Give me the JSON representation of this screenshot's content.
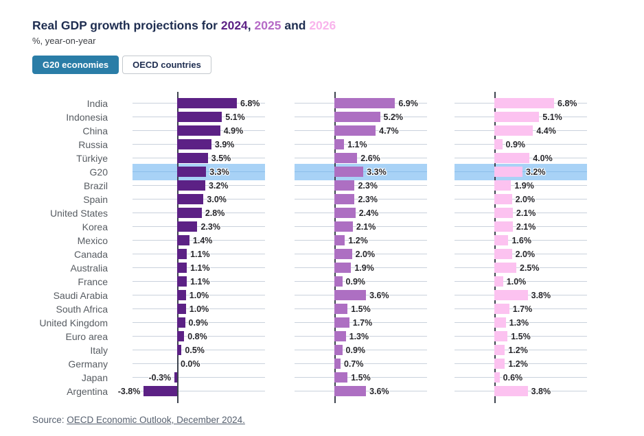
{
  "header": {
    "title_prefix": "Real GDP growth projections for ",
    "year1": "2024",
    "sep1": ", ",
    "year2": "2025",
    "sep2": " and ",
    "year3": "2026",
    "subtitle": "%, year-on-year"
  },
  "tabs": {
    "g20_label": "G20 economies",
    "oecd_label": "OECD countries"
  },
  "source": {
    "prefix": "Source: ",
    "link": "OECD Economic Outlook, December 2024."
  },
  "colors": {
    "title_navy": "#1e2d50",
    "accent_blue": "#2a7da7",
    "highlight_band": "#a8d2f6",
    "year2024": "#5c2185",
    "year2025": "#ad6fc2",
    "year2026": "#fcc2f0"
  },
  "chart_data": {
    "type": "bar",
    "orientation": "horizontal",
    "title": "Real GDP growth projections for 2024, 2025 and 2026",
    "subtitle": "%, year-on-year",
    "value_unit": "%",
    "grid": true,
    "highlight_category": "G20",
    "categories": [
      "India",
      "Indonesia",
      "China",
      "Russia",
      "Türkiye",
      "G20",
      "Brazil",
      "Spain",
      "United States",
      "Korea",
      "Mexico",
      "Canada",
      "Australia",
      "France",
      "Saudi Arabia",
      "South Africa",
      "United Kingdom",
      "Euro area",
      "Italy",
      "Germany",
      "Japan",
      "Argentina"
    ],
    "series": [
      {
        "name": "2024",
        "color": "#5c2185",
        "values": [
          6.8,
          5.1,
          4.9,
          3.9,
          3.5,
          3.3,
          3.2,
          3.0,
          2.8,
          2.3,
          1.4,
          1.1,
          1.1,
          1.1,
          1.0,
          1.0,
          0.9,
          0.8,
          0.5,
          0.0,
          -0.3,
          -3.8
        ]
      },
      {
        "name": "2025",
        "color": "#ad6fc2",
        "values": [
          6.9,
          5.2,
          4.7,
          1.1,
          2.6,
          3.3,
          2.3,
          2.3,
          2.4,
          2.1,
          1.2,
          2.0,
          1.9,
          0.9,
          3.6,
          1.5,
          1.7,
          1.3,
          0.9,
          0.7,
          1.5,
          3.6
        ]
      },
      {
        "name": "2026",
        "color": "#fcc2f0",
        "values": [
          6.8,
          5.1,
          4.4,
          0.9,
          4.0,
          3.2,
          1.9,
          2.0,
          2.1,
          2.1,
          1.6,
          2.0,
          2.5,
          1.0,
          3.8,
          1.7,
          1.3,
          1.5,
          1.2,
          1.2,
          0.6,
          3.8
        ]
      }
    ]
  }
}
